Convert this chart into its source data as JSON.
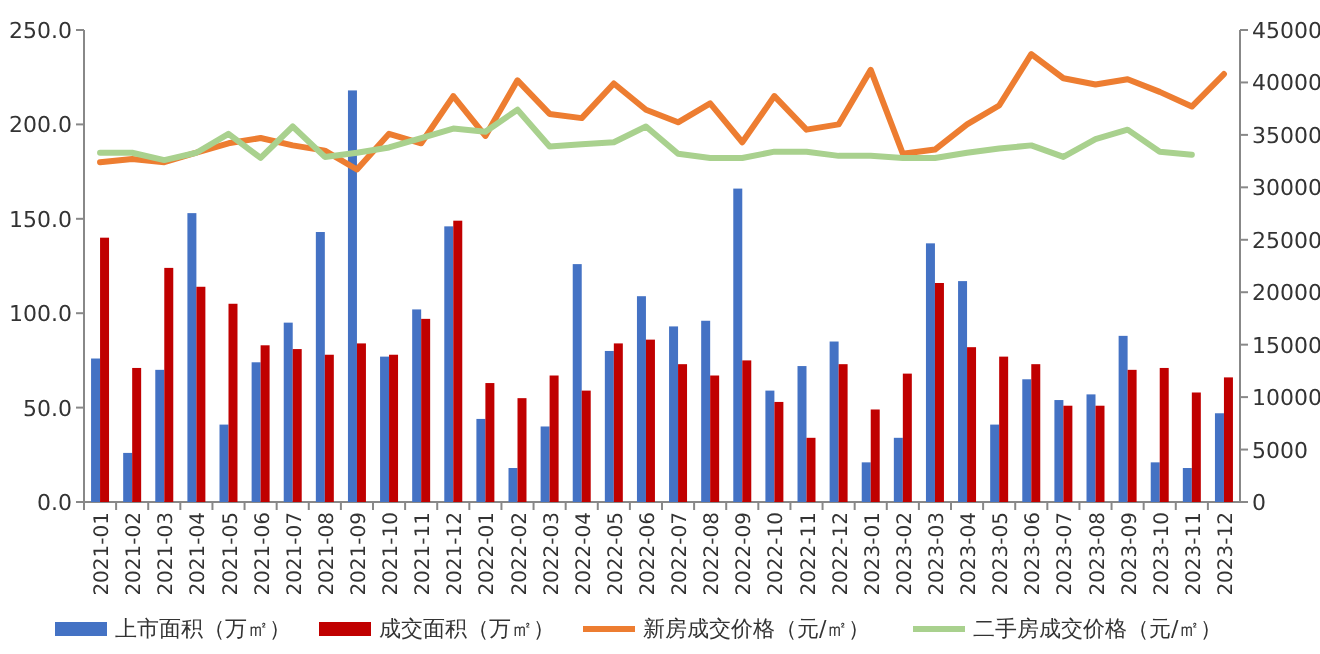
{
  "chart_data": {
    "type": "bar",
    "categories": [
      "2021-01",
      "2021-02",
      "2021-03",
      "2021-04",
      "2021-05",
      "2021-06",
      "2021-07",
      "2021-08",
      "2021-09",
      "2021-10",
      "2021-11",
      "2021-12",
      "2022-01",
      "2022-02",
      "2022-03",
      "2022-04",
      "2022-05",
      "2022-06",
      "2022-07",
      "2022-08",
      "2022-09",
      "2022-10",
      "2022-11",
      "2022-12",
      "2023-01",
      "2023-02",
      "2023-03",
      "2023-04",
      "2023-05",
      "2023-06",
      "2023-07",
      "2023-08",
      "2023-09",
      "2023-10",
      "2023-11",
      "2023-12"
    ],
    "series": [
      {
        "name": "上市面积（万㎡）",
        "color": "#4472c4",
        "values": [
          76,
          26,
          70,
          153,
          41,
          74,
          95,
          143,
          218,
          77,
          102,
          146,
          44,
          18,
          40,
          126,
          80,
          109,
          93,
          96,
          166,
          59,
          72,
          85,
          21,
          34,
          137,
          117,
          41,
          65,
          54,
          57,
          88,
          21,
          18,
          47
        ]
      },
      {
        "name": "成交面积（万㎡）",
        "color": "#c00000",
        "values": [
          140,
          71,
          124,
          114,
          105,
          83,
          81,
          78,
          84,
          78,
          97,
          149,
          63,
          55,
          67,
          59,
          84,
          86,
          73,
          67,
          75,
          53,
          34,
          73,
          49,
          68,
          116,
          82,
          77,
          73,
          51,
          51,
          70,
          71,
          58,
          66
        ]
      },
      {
        "name": "新房成交价格（元/㎡）",
        "type": "line",
        "axis": "y2",
        "color": "#ed7d31",
        "values": [
          32400,
          32700,
          32400,
          33300,
          34200,
          34700,
          34000,
          33500,
          31700,
          35100,
          34200,
          38700,
          34900,
          40200,
          37000,
          36600,
          39900,
          37400,
          36200,
          38000,
          34300,
          38700,
          35500,
          36000,
          41200,
          33200,
          33600,
          36000,
          37800,
          42700,
          40400,
          39800,
          40300,
          39100,
          37700,
          40800
        ]
      },
      {
        "name": "二手房成交价格（元/㎡）",
        "type": "line",
        "axis": "y2",
        "color": "#a9d18e",
        "values": [
          33300,
          33300,
          32600,
          33300,
          35100,
          32800,
          35800,
          32900,
          33300,
          33800,
          34700,
          35600,
          35300,
          37400,
          33900,
          34100,
          34300,
          35800,
          33200,
          32800,
          32800,
          33400,
          33400,
          33000,
          33000,
          32800,
          32800,
          33300,
          33700,
          34000,
          32900,
          34600,
          35500,
          33400,
          33100,
          null
        ]
      }
    ],
    "ylim": [
      0,
      250
    ],
    "yticks": [
      {
        "value": 0,
        "label": "0.0"
      },
      {
        "value": 50,
        "label": "50.0"
      },
      {
        "value": 100,
        "label": "100.0"
      },
      {
        "value": 150,
        "label": "150.0"
      },
      {
        "value": 200,
        "label": "200.0"
      },
      {
        "value": 250,
        "label": "250.0"
      }
    ],
    "y2lim": [
      0,
      45000
    ],
    "y2ticks": [
      0,
      5000,
      10000,
      15000,
      20000,
      25000,
      30000,
      35000,
      40000,
      45000
    ],
    "grid": false,
    "legend": "bottom"
  }
}
